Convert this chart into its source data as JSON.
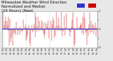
{
  "n_points": 144,
  "median_value": 0.52,
  "ylim": [
    0.0,
    1.0
  ],
  "background_color": "#e8e8e8",
  "plot_bg_color": "#ffffff",
  "bar_color": "#cc0000",
  "median_color": "#3333cc",
  "grid_color": "#999999",
  "title_fontsize": 3.8,
  "tick_fontsize": 2.2,
  "ytick_fontsize": 2.8,
  "legend_color1": "#3333cc",
  "legend_color2": "#cc0000",
  "n_grids": 4,
  "seed": 42
}
